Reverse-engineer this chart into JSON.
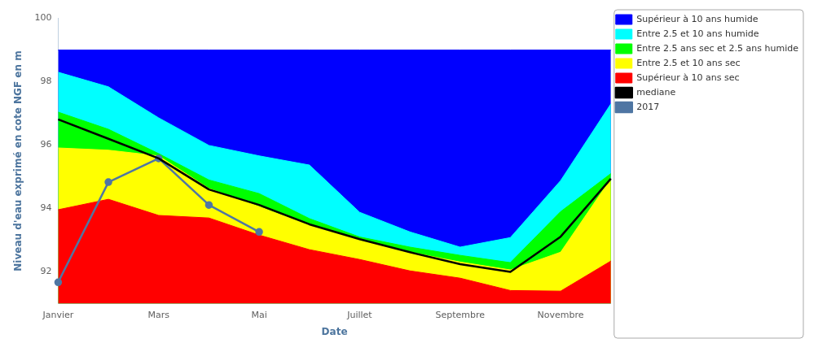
{
  "chart_data": {
    "type": "area",
    "xlabel": "Date",
    "ylabel": "Niveau d'eau exprimé en cote NGF en m",
    "categories": [
      "Janvier",
      null,
      "Mars",
      null,
      "Mai",
      null,
      "Juillet",
      null,
      "Septembre",
      null,
      "Novembre",
      null
    ],
    "ylim": [
      91,
      100
    ],
    "yticks": [
      92,
      94,
      96,
      98,
      100
    ],
    "grid": false,
    "legend": "top right",
    "series": [
      {
        "name": "Supérieur à 10 ans humide",
        "color": "#0000ff",
        "values": [
          99,
          99,
          99,
          99,
          99,
          99,
          99,
          99,
          99,
          99,
          99,
          99
        ]
      },
      {
        "name": "Entre 2.5 et 10 ans humide",
        "color": "#00ffff",
        "values": [
          98.3,
          97.84,
          96.86,
          95.99,
          95.66,
          95.37,
          93.88,
          93.26,
          92.78,
          93.08,
          94.88,
          97.3
        ]
      },
      {
        "name": "Entre 2.5 ans sec et 2.5 ans humide",
        "color": "#00ff00",
        "values": [
          97.04,
          96.5,
          95.73,
          94.9,
          94.47,
          93.68,
          93.1,
          92.78,
          92.52,
          92.29,
          93.9,
          95.1
        ]
      },
      {
        "name": "Entre 2.5 et 10 ans sec",
        "color": "#ffff00",
        "values": [
          95.91,
          95.84,
          95.66,
          94.63,
          94.06,
          93.47,
          93.0,
          92.62,
          92.31,
          92.06,
          92.62,
          94.94
        ]
      },
      {
        "name": "Supérieur à 10 ans sec",
        "color": "#ff0000",
        "values": [
          93.96,
          94.29,
          93.78,
          93.7,
          93.16,
          92.7,
          92.39,
          92.03,
          91.8,
          91.41,
          91.39,
          92.34
        ]
      },
      {
        "name": "mediane",
        "type": "line",
        "marker": "none",
        "color": "#000000",
        "values": [
          96.81,
          96.2,
          95.58,
          94.6,
          94.11,
          93.5,
          93.03,
          92.62,
          92.24,
          92.0,
          93.11,
          94.94
        ]
      },
      {
        "name": "2017",
        "type": "line",
        "marker": "circle",
        "color": "#4f76a3",
        "values": [
          91.67,
          94.83,
          95.58,
          94.11,
          93.26,
          null,
          null,
          null,
          null,
          null,
          null,
          null
        ]
      }
    ]
  }
}
